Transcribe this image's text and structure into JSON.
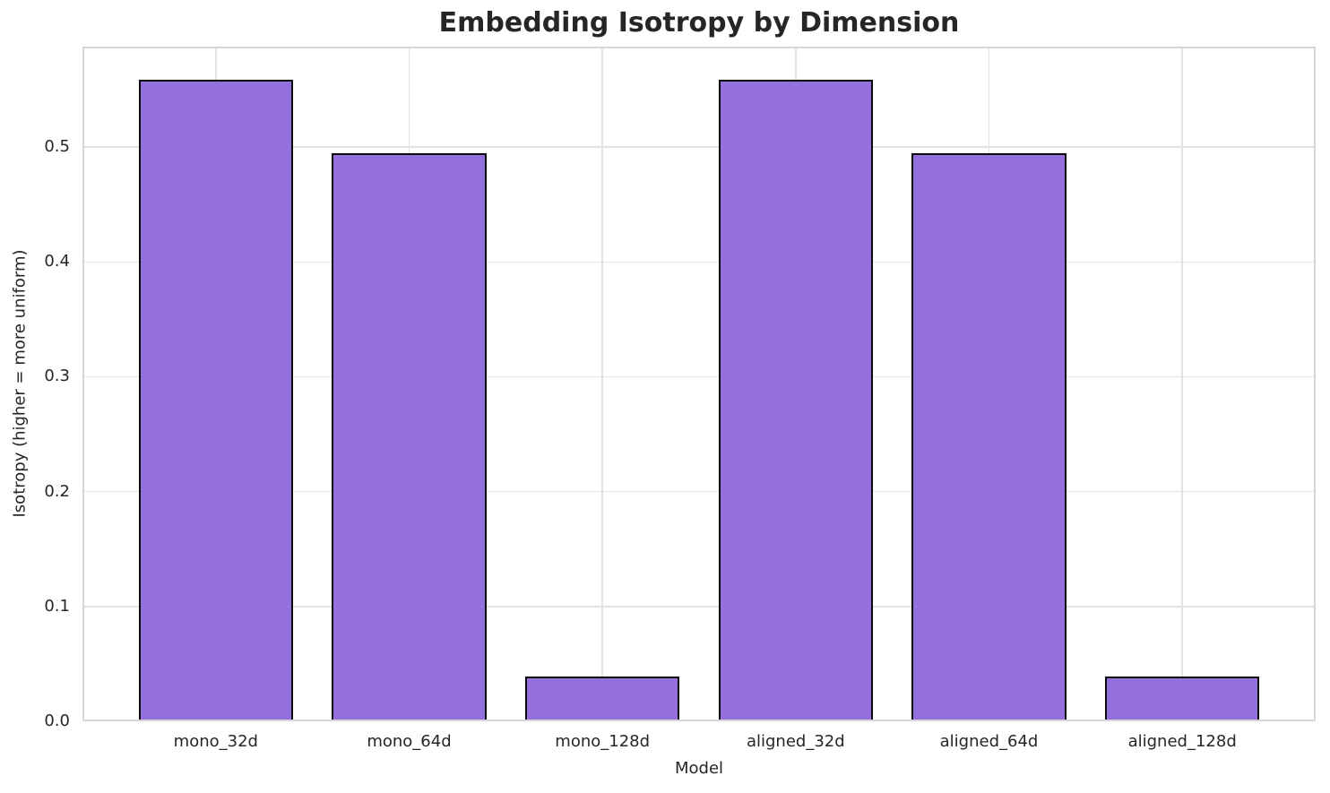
{
  "chart_data": {
    "type": "bar",
    "title": "Embedding Isotropy by Dimension",
    "xlabel": "Model",
    "ylabel": "Isotropy (higher = more uniform)",
    "categories": [
      "mono_32d",
      "mono_64d",
      "mono_128d",
      "aligned_32d",
      "aligned_64d",
      "aligned_128d"
    ],
    "values": [
      0.559,
      0.495,
      0.039,
      0.559,
      0.495,
      0.039
    ],
    "ylim": [
      0,
      0.5875
    ],
    "yticks": [
      0.0,
      0.1,
      0.2,
      0.3,
      0.4,
      0.5
    ],
    "ytick_labels": [
      "0.0",
      "0.1",
      "0.2",
      "0.3",
      "0.4",
      "0.5"
    ],
    "grid": true,
    "legend": "none",
    "colors": {
      "bar_fill": "#9370DB",
      "bar_edge": "#0a0a0a",
      "grid": "#e2e2e2",
      "spine": "#d6d6d6",
      "text": "#262626",
      "background": "#ffffff"
    }
  }
}
